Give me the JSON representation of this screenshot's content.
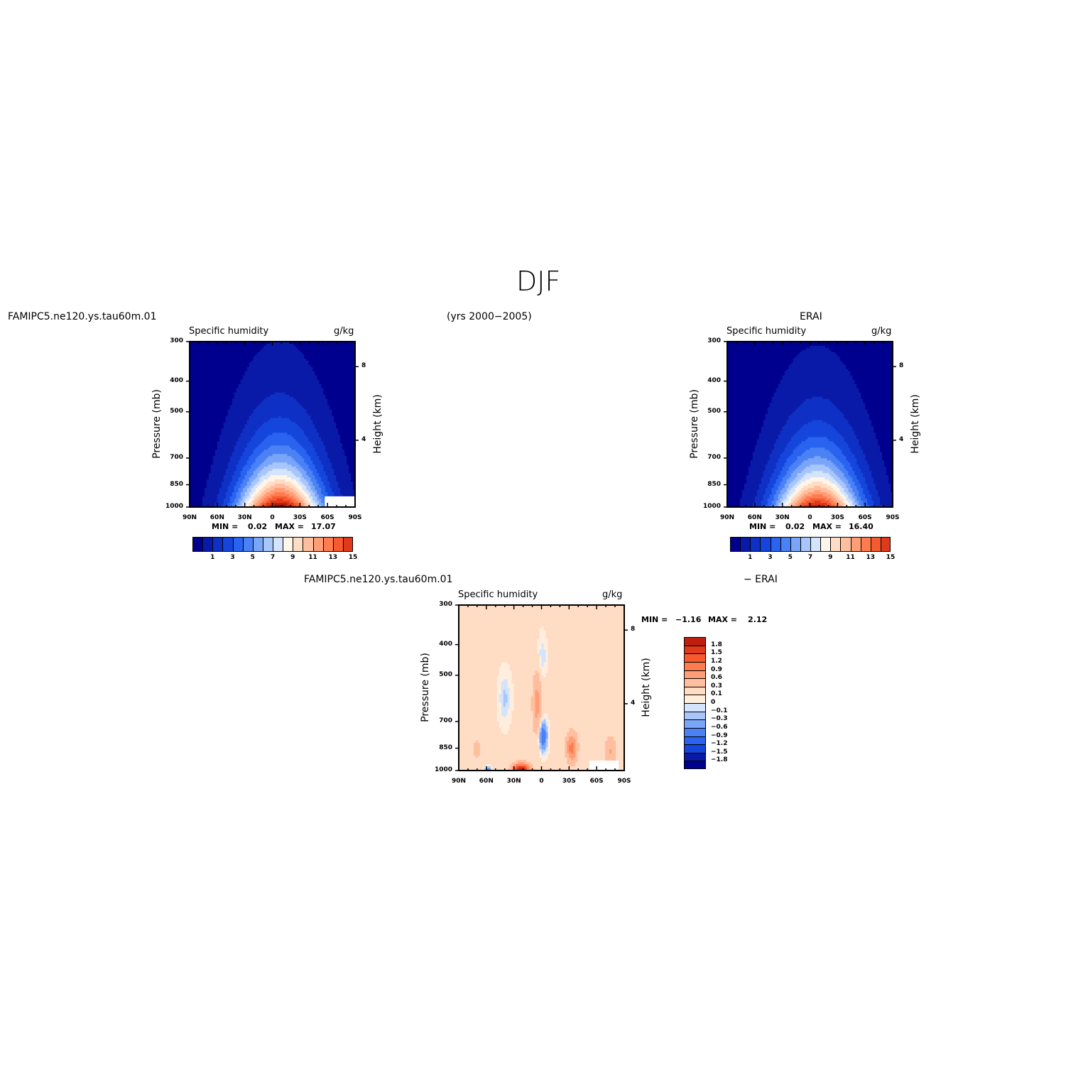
{
  "header": {
    "title": "DJF",
    "left_case": "FAMIPC5.ne120.ys.tau60m.01",
    "years": "(yrs 2000−2005)",
    "right_case": "ERAI",
    "diff_case": "FAMIPC5.ne120.ys.tau60m.01",
    "diff_minus": "− ERAI"
  },
  "colors": {
    "sequential": [
      "#00008f",
      "#0a1aa8",
      "#0f30c4",
      "#1546dc",
      "#2a63f0",
      "#4a82f5",
      "#7aa5f8",
      "#a9c6fb",
      "#d4e4fd",
      "#fff5e8",
      "#ffdcc4",
      "#ffbf9f",
      "#ff9d77",
      "#ff7b50",
      "#f85a30",
      "#e03a1a",
      "#bf200d",
      "#8f0a05"
    ],
    "diverging": [
      "#00008f",
      "#0a1aa8",
      "#1546dc",
      "#2a63f0",
      "#4a82f5",
      "#7aa5f8",
      "#a9c6fb",
      "#d4e4fd",
      "#ffeedd",
      "#ffdcc4",
      "#ffbf9f",
      "#ff9d77",
      "#ff7b50",
      "#f85a30",
      "#e03a1a",
      "#bf200d",
      "#8f0a05"
    ]
  },
  "chart_data": [
    {
      "type": "heatmap",
      "name": "model",
      "title": "Specific humidity",
      "units": "g/kg",
      "xlabel": "",
      "ylabel": "Pressure (mb)",
      "y2label": "Height (km)",
      "x_ticks": [
        "90N",
        "60N",
        "30N",
        "0",
        "30S",
        "60S",
        "90S"
      ],
      "y_ticks": [
        300,
        400,
        500,
        700,
        850,
        1000
      ],
      "y_log": true,
      "ylim": [
        1000,
        300
      ],
      "y2_ticks": [
        {
          "label": "8",
          "pressure": 360
        },
        {
          "label": "4",
          "pressure": 615
        }
      ],
      "min_label": "MIN =",
      "min_value": "0.02",
      "max_label": "MAX =",
      "max_value": "17.07",
      "missing_region": {
        "lat_from": -57,
        "lat_to": -90,
        "p_from": 925,
        "p_to": 1000
      },
      "field": {
        "peak": 17.07,
        "center_lat": -8,
        "scale_height_km": 2.45
      },
      "colorbar_ticks": [
        "1",
        "3",
        "5",
        "7",
        "9",
        "11",
        "13",
        "15"
      ]
    },
    {
      "type": "heatmap",
      "name": "obs",
      "title": "Specific humidity",
      "units": "g/kg",
      "xlabel": "",
      "ylabel": "Pressure (mb)",
      "y2label": "Height (km)",
      "x_ticks": [
        "90N",
        "60N",
        "30N",
        "0",
        "30S",
        "60S",
        "90S"
      ],
      "y_ticks": [
        300,
        400,
        500,
        700,
        850,
        1000
      ],
      "y_log": true,
      "ylim": [
        1000,
        300
      ],
      "y2_ticks": [
        {
          "label": "8",
          "pressure": 360
        },
        {
          "label": "4",
          "pressure": 615
        }
      ],
      "min_label": "MIN =",
      "min_value": "0.02",
      "max_label": "MAX =",
      "max_value": "16.40",
      "field": {
        "peak": 16.4,
        "center_lat": -8,
        "scale_height_km": 2.4
      },
      "colorbar_ticks": [
        "1",
        "3",
        "5",
        "7",
        "9",
        "11",
        "13",
        "15"
      ]
    },
    {
      "type": "heatmap",
      "name": "diff",
      "title": "Specific humidity",
      "units": "g/kg",
      "xlabel": "",
      "ylabel": "Pressure (mb)",
      "y2label": "Height (km)",
      "x_ticks": [
        "90N",
        "60N",
        "30N",
        "0",
        "30S",
        "60S",
        "90S"
      ],
      "y_ticks": [
        300,
        400,
        500,
        700,
        850,
        1000
      ],
      "y_log": true,
      "ylim": [
        1000,
        300
      ],
      "y2_ticks": [
        {
          "label": "8",
          "pressure": 360
        },
        {
          "label": "4",
          "pressure": 615
        }
      ],
      "min_label": "MIN =",
      "min_value": "−1.16",
      "max_label": "MAX =",
      "max_value": "2.12",
      "missing_region": {
        "lat_from": -52,
        "lat_to": -84,
        "p_from": 930,
        "p_to": 1000
      },
      "colorbar_labels": [
        "1.8",
        "1.5",
        "1.2",
        "0.9",
        "0.6",
        "0.3",
        "0.1",
        "0",
        "−0.1",
        "−0.3",
        "−0.6",
        "−0.9",
        "−1.2",
        "−1.5",
        "−1.8"
      ]
    }
  ]
}
